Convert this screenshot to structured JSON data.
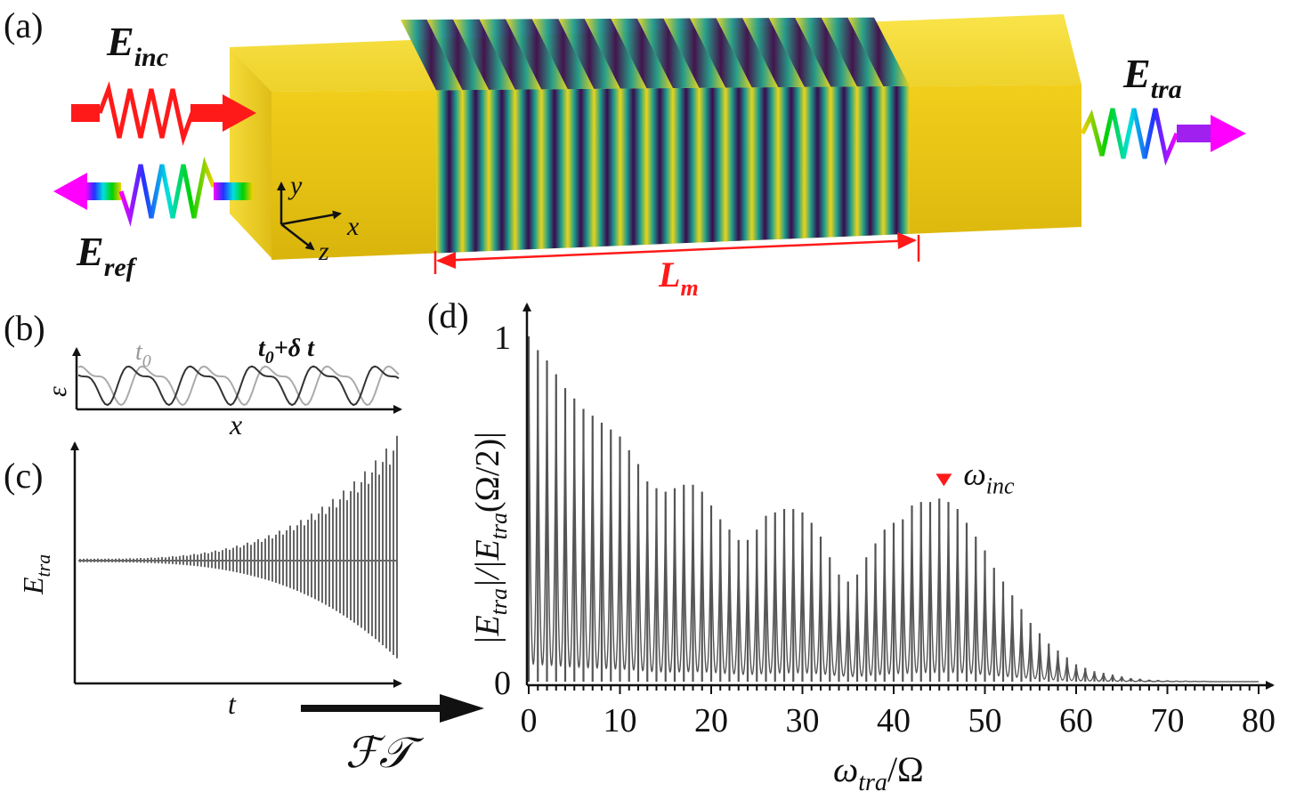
{
  "labels": {
    "panel_a": "(a)",
    "panel_b": "(b)",
    "panel_c": "(c)",
    "panel_d": "(d)"
  },
  "panel_a": {
    "e_inc": {
      "main": "E",
      "sub": "inc"
    },
    "e_ref": {
      "main": "E",
      "sub": "ref"
    },
    "e_tra": {
      "main": "E",
      "sub": "tra"
    },
    "length": {
      "main": "L",
      "sub": "m"
    },
    "axes": {
      "x": "x",
      "y": "y",
      "z": "z"
    },
    "stripe_count": 18,
    "colors": {
      "block": "#e6c313",
      "stripe_dark": "#3a0a4e",
      "stripe_mid": "#1d9b8c",
      "stripe_light": "#e8d51d",
      "marker": "#ff1a1a"
    }
  },
  "panel_b": {
    "ylabel": "ε",
    "xlabel": "x",
    "curve1_label": "t",
    "curve1_sub": "0",
    "curve2_label": "t",
    "curve2_sub": "0",
    "curve2_suffix": "+δ t"
  },
  "panel_c": {
    "ylabel": {
      "main": "E",
      "sub": "tra"
    },
    "xlabel": "t",
    "arrow_label": "ℱ𝒯"
  },
  "chart_data": {
    "type": "bar",
    "title": "",
    "xlabel": {
      "main": "ω",
      "sub": "tra",
      "suffix": "/Ω"
    },
    "ylabel": "|E_tra|/|E_tra(Ω/2)|",
    "xlim": [
      0,
      80
    ],
    "ylim": [
      0,
      1
    ],
    "x_ticks": [
      "0",
      "10",
      "20",
      "30",
      "40",
      "50",
      "60",
      "70",
      "80"
    ],
    "y_ticks": [
      "0",
      "1"
    ],
    "annotation": {
      "text": "ω",
      "sub": "inc",
      "x": 45.5
    },
    "x": [
      0,
      1,
      2,
      3,
      4,
      5,
      6,
      7,
      8,
      9,
      10,
      11,
      12,
      13,
      14,
      15,
      16,
      17,
      18,
      19,
      20,
      21,
      22,
      23,
      24,
      25,
      26,
      27,
      28,
      29,
      30,
      31,
      32,
      33,
      34,
      35,
      36,
      37,
      38,
      39,
      40,
      41,
      42,
      43,
      44,
      45,
      46,
      47,
      48,
      49,
      50,
      51,
      52,
      53,
      54,
      55,
      56,
      57,
      58,
      59,
      60,
      61,
      62,
      63,
      64,
      65,
      66,
      67,
      68,
      69,
      70,
      71,
      72,
      73,
      74,
      75,
      76,
      77,
      78,
      79,
      80
    ],
    "values": [
      1.0,
      0.96,
      0.93,
      0.89,
      0.85,
      0.82,
      0.79,
      0.77,
      0.75,
      0.73,
      0.71,
      0.67,
      0.63,
      0.58,
      0.56,
      0.55,
      0.56,
      0.57,
      0.57,
      0.55,
      0.51,
      0.47,
      0.44,
      0.41,
      0.41,
      0.44,
      0.48,
      0.49,
      0.5,
      0.5,
      0.49,
      0.46,
      0.42,
      0.36,
      0.31,
      0.29,
      0.31,
      0.36,
      0.4,
      0.44,
      0.46,
      0.47,
      0.51,
      0.52,
      0.52,
      0.53,
      0.52,
      0.5,
      0.46,
      0.42,
      0.38,
      0.33,
      0.29,
      0.25,
      0.21,
      0.17,
      0.14,
      0.11,
      0.09,
      0.07,
      0.05,
      0.04,
      0.03,
      0.025,
      0.02,
      0.015,
      0.01,
      0.008,
      0.005,
      0.004,
      0.003,
      0.002,
      0.002,
      0.001,
      0.001,
      0.0,
      0.0,
      0.0,
      0.0,
      0.0,
      0.0
    ],
    "series_color": "#555555",
    "marker_color": "#ff1a1a"
  }
}
